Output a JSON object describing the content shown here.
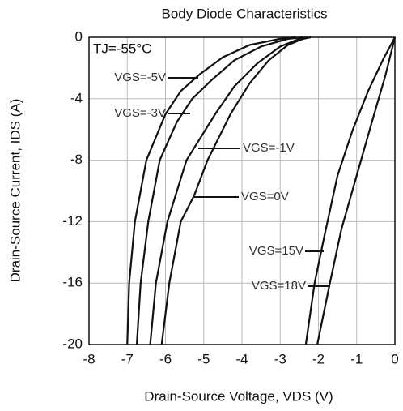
{
  "chart_data": {
    "type": "line",
    "title": "Body Diode Characteristics",
    "annotation": "TJ=-55°C",
    "xlabel": "Drain-Source Voltage, VDS (V)",
    "ylabel": "Drain-Source Current, IDS (A)",
    "xlim": [
      -8,
      0
    ],
    "xticks": [
      -8,
      -7,
      -6,
      -5,
      -4,
      -3,
      -2,
      -1,
      0
    ],
    "ylim": [
      -20,
      0
    ],
    "yticks": [
      -20,
      -16,
      -12,
      -8,
      -4,
      0
    ],
    "grid": true,
    "series": [
      {
        "name": "VGS=-5V",
        "color": "#111111",
        "x": [
          -7.0,
          -6.95,
          -6.8,
          -6.5,
          -6.0,
          -5.6,
          -5.1,
          -4.5,
          -3.8,
          -3.0,
          -2.6
        ],
        "values": [
          -20,
          -16,
          -12,
          -8,
          -5,
          -3.5,
          -2.4,
          -1.3,
          -0.5,
          -0.1,
          0
        ]
      },
      {
        "name": "VGS=-3V",
        "color": "#111111",
        "x": [
          -6.75,
          -6.65,
          -6.45,
          -6.15,
          -5.7,
          -5.3,
          -4.8,
          -4.2,
          -3.5,
          -2.8,
          -2.4
        ],
        "values": [
          -20,
          -16,
          -12,
          -8,
          -5.5,
          -4,
          -2.8,
          -1.5,
          -0.6,
          -0.1,
          0
        ]
      },
      {
        "name": "VGS=-1V",
        "color": "#111111",
        "x": [
          -6.4,
          -6.25,
          -5.95,
          -5.45,
          -5.2,
          -4.7,
          -4.2,
          -3.6,
          -3.0,
          -2.5,
          -2.3
        ],
        "values": [
          -20,
          -16,
          -12,
          -8,
          -7,
          -5,
          -3.2,
          -1.7,
          -0.6,
          -0.1,
          0
        ]
      },
      {
        "name": "VGS=0V",
        "color": "#111111",
        "x": [
          -6.1,
          -5.9,
          -5.6,
          -5.25,
          -4.9,
          -4.3,
          -3.8,
          -3.3,
          -2.8,
          -2.4,
          -2.2
        ],
        "values": [
          -20,
          -16,
          -12,
          -10.3,
          -8,
          -5,
          -3,
          -1.5,
          -0.5,
          -0.1,
          0
        ]
      },
      {
        "name": "VGS=15V",
        "color": "#111111",
        "x": [
          -2.33,
          -2.1,
          -1.85,
          -1.5,
          -1.1,
          -0.7,
          -0.3,
          0
        ],
        "values": [
          -20,
          -16,
          -13,
          -9,
          -6,
          -3.5,
          -1.4,
          0
        ]
      },
      {
        "name": "VGS=18V",
        "color": "#111111",
        "x": [
          -2.03,
          -1.7,
          -1.4,
          -1.0,
          -0.6,
          -0.25,
          0
        ],
        "values": [
          -20,
          -16,
          -12.5,
          -9,
          -5.5,
          -2.5,
          0
        ]
      }
    ]
  }
}
